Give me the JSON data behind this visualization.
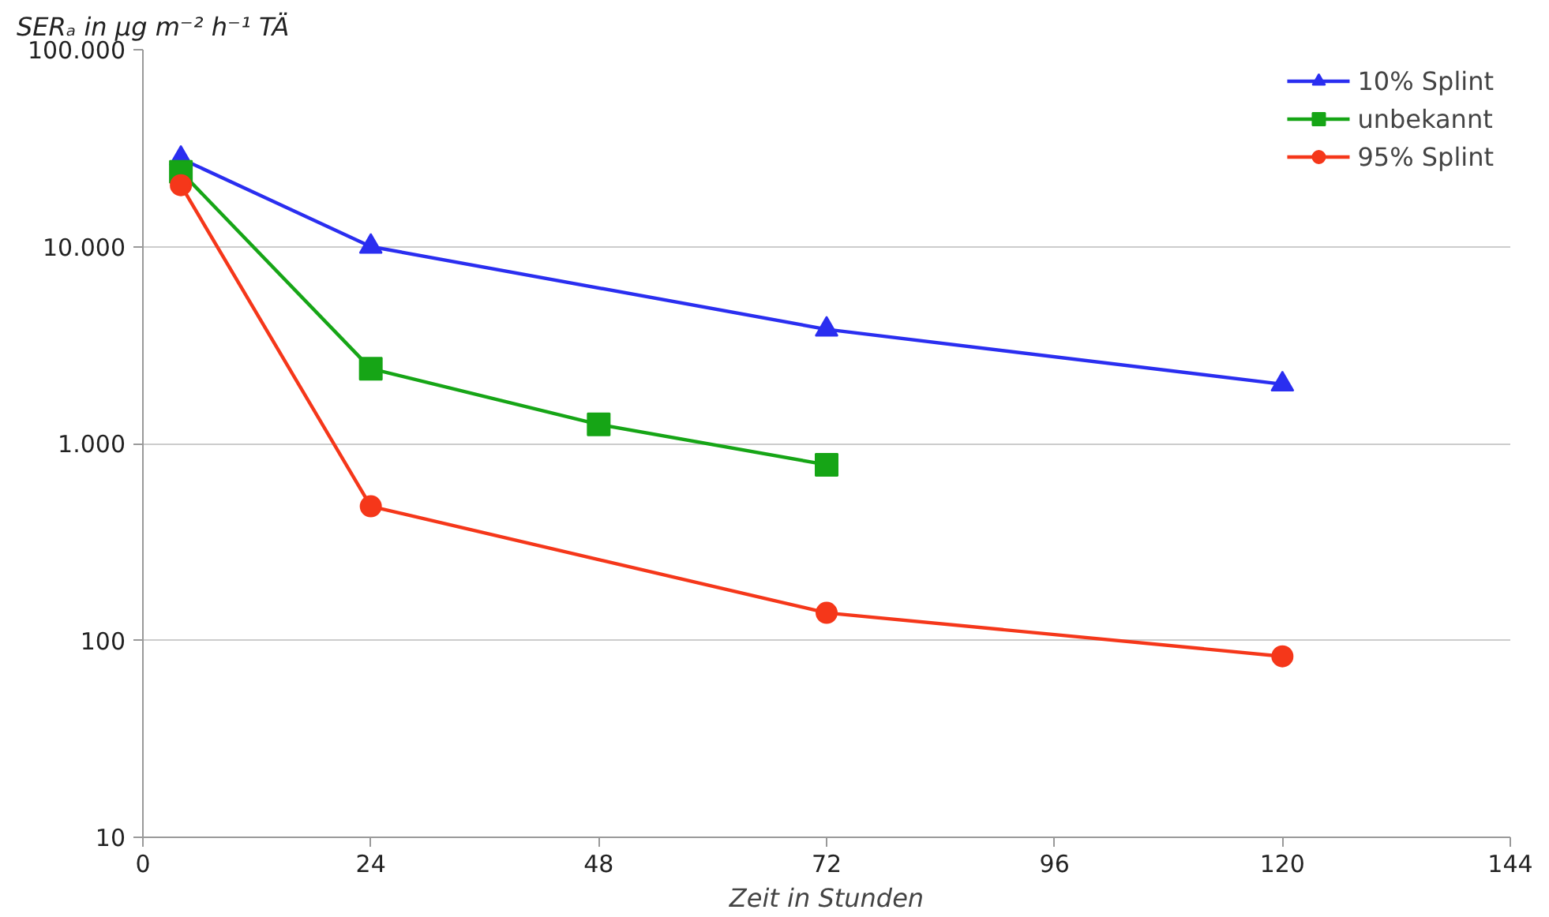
{
  "chart_data": {
    "type": "line",
    "ylabel": "SERₐ in µg m⁻² h⁻¹ TÄ",
    "xlabel": "Zeit in Stunden",
    "log": "y",
    "grid": "y",
    "legend": "top right",
    "line_style": "solid",
    "xlim": [
      0,
      144
    ],
    "xticks": [
      0,
      24,
      48,
      72,
      96,
      120,
      144
    ],
    "ylim": [
      10,
      100000
    ],
    "yticks": [
      {
        "value": 10,
        "label": "10"
      },
      {
        "value": 100,
        "label": "100"
      },
      {
        "value": 1000,
        "label": "1.000"
      },
      {
        "value": 10000,
        "label": "10.000"
      },
      {
        "value": 100000,
        "label": "100.000"
      }
    ],
    "series": [
      {
        "name": "10% Splint",
        "color": "#2a2ef0",
        "marker": "triangle",
        "x": [
          4,
          24,
          72,
          120
        ],
        "values": [
          28000,
          10000,
          3800,
          2000
        ]
      },
      {
        "name": "unbekannt",
        "color": "#16a516",
        "marker": "square",
        "x": [
          4,
          24,
          48,
          72
        ],
        "values": [
          24000,
          2400,
          1250,
          780
        ]
      },
      {
        "name": "95% Splint",
        "color": "#f5371a",
        "marker": "circle",
        "x": [
          4,
          24,
          72,
          120
        ],
        "values": [
          20500,
          480,
          138,
          83
        ]
      }
    ]
  }
}
